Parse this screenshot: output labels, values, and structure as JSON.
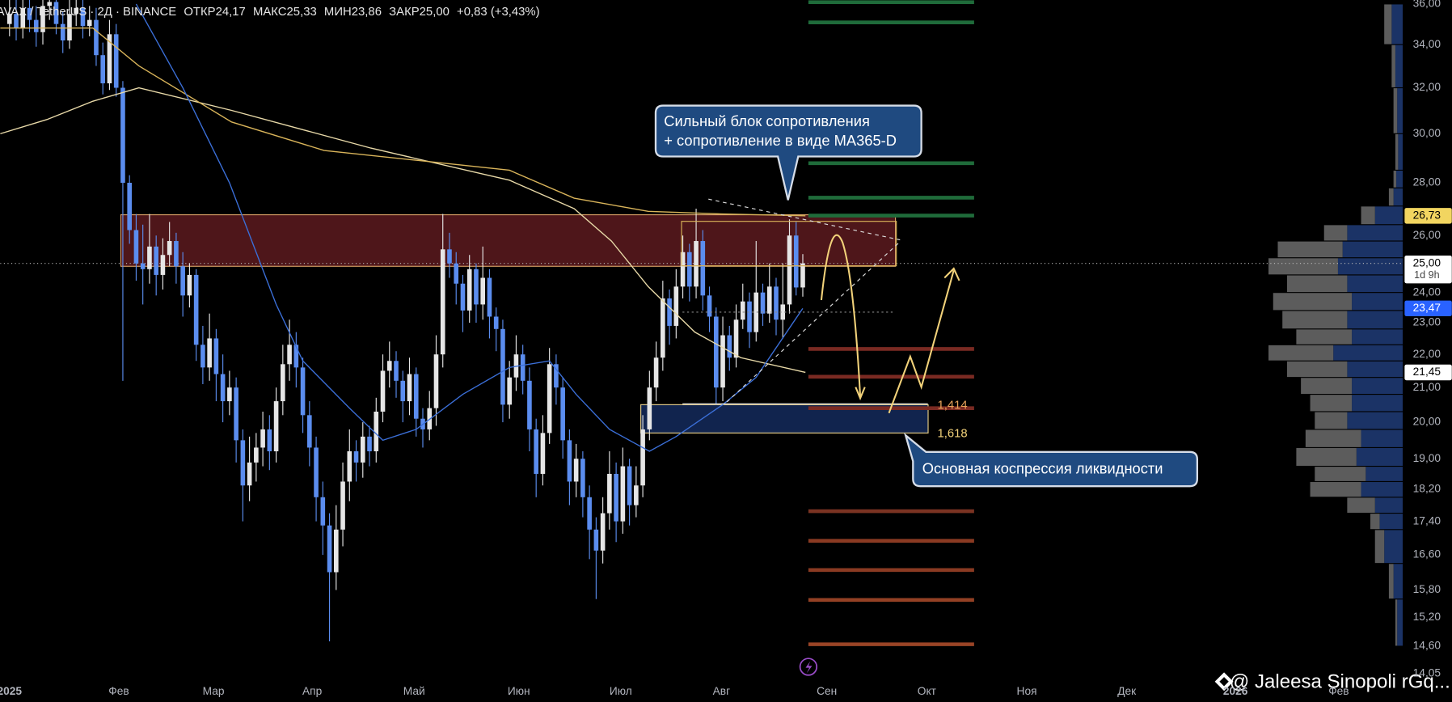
{
  "chart_data": {
    "type": "candlestick",
    "header": {
      "symbol": "AVAX / TetherUS · 2Д · BINANCE",
      "ohlc": [
        {
          "label": "ОТКР",
          "value": "24,17"
        },
        {
          "label": "МАКС",
          "value": "25,33"
        },
        {
          "label": "МИН",
          "value": "23,86"
        },
        {
          "label": "ЗАКР",
          "value": "25,00"
        }
      ],
      "change": "+0,83 (+3,43%)"
    },
    "log_scale": true,
    "grid": false,
    "up_color": "#e6e6e6",
    "down_color": "#5b8def",
    "xlim": [
      -1.4,
      209
    ],
    "ylim": [
      14,
      36.2
    ],
    "xticks": [
      {
        "value": 0,
        "label": "2025"
      },
      {
        "value": 16.4,
        "label": "Фев"
      },
      {
        "value": 30.6,
        "label": "Мар"
      },
      {
        "value": 45.4,
        "label": "Апр"
      },
      {
        "value": 60.7,
        "label": "Май"
      },
      {
        "value": 76.4,
        "label": "Июн"
      },
      {
        "value": 91.7,
        "label": "Июл"
      },
      {
        "value": 106.8,
        "label": "Авг"
      },
      {
        "value": 122.6,
        "label": "Сен"
      },
      {
        "value": 137.6,
        "label": "Окт"
      },
      {
        "value": 152.6,
        "label": "Ноя"
      },
      {
        "value": 167.6,
        "label": "Дек"
      },
      {
        "value": 183.9,
        "label": "2026"
      },
      {
        "value": 199.4,
        "label": "Фев"
      }
    ],
    "yticks": [
      {
        "value": 36,
        "label": "36,00"
      },
      {
        "value": 34,
        "label": "34,00"
      },
      {
        "value": 32,
        "label": "32,00"
      },
      {
        "value": 30,
        "label": "30,00"
      },
      {
        "value": 28,
        "label": "28,00"
      },
      {
        "value": 26,
        "label": "26,00"
      },
      {
        "value": 24,
        "label": "24,00"
      },
      {
        "value": 23,
        "label": "23,00"
      },
      {
        "value": 22,
        "label": "22,00"
      },
      {
        "value": 21,
        "label": "21,00"
      },
      {
        "value": 20,
        "label": "20,00"
      },
      {
        "value": 19,
        "label": "19,00"
      },
      {
        "value": 18.2,
        "label": "18,20"
      },
      {
        "value": 17.4,
        "label": "17,40"
      },
      {
        "value": 16.6,
        "label": "16,60"
      },
      {
        "value": 15.8,
        "label": "15,80"
      },
      {
        "value": 15.2,
        "label": "15,20"
      },
      {
        "value": 14.6,
        "label": "14,60"
      },
      {
        "value": 14.05,
        "label": "14,05"
      }
    ],
    "x": [
      0,
      1,
      2,
      3,
      4,
      5,
      6,
      7,
      8,
      9,
      10,
      11,
      12,
      13,
      14,
      15,
      16,
      17,
      18,
      19,
      20,
      21,
      22,
      23,
      24,
      25,
      26,
      27,
      28,
      29,
      30,
      31,
      32,
      33,
      34,
      35,
      36,
      37,
      38,
      39,
      40,
      41,
      42,
      43,
      44,
      45,
      46,
      47,
      48,
      49,
      50,
      51,
      52,
      53,
      54,
      55,
      56,
      57,
      58,
      59,
      60,
      61,
      62,
      63,
      64,
      65,
      66,
      67,
      68,
      69,
      70,
      71,
      72,
      73,
      74,
      75,
      76,
      77,
      78,
      79,
      80,
      81,
      82,
      83,
      84,
      85,
      86,
      87,
      88,
      89,
      90,
      91,
      92,
      93,
      94,
      95,
      96,
      97,
      98,
      99,
      100,
      101,
      102,
      103,
      104,
      105,
      106,
      107,
      108,
      109,
      110,
      111,
      112,
      113,
      114,
      115,
      116,
      117,
      118,
      119
    ],
    "open": [
      35.0,
      35.5,
      34.8,
      35.8,
      35.2,
      34.6,
      35.9,
      36.1,
      35.0,
      34.2,
      35.5,
      35.8,
      34.9,
      35.2,
      33.5,
      32.2,
      34.5,
      32.0,
      28.0,
      26.2,
      25.0,
      24.8,
      25.6,
      24.6,
      25.3,
      25.8,
      24.9,
      23.9,
      24.6,
      22.3,
      21.6,
      22.5,
      21.4,
      20.6,
      21.0,
      19.5,
      18.3,
      18.9,
      19.3,
      19.8,
      19.2,
      20.6,
      21.7,
      22.3,
      21.6,
      20.2,
      19.3,
      18.0,
      17.3,
      16.2,
      17.2,
      18.4,
      19.2,
      18.9,
      19.6,
      19.2,
      20.3,
      21.5,
      21.8,
      21.2,
      20.6,
      21.4,
      20.1,
      19.8,
      20.4,
      22.0,
      25.5,
      25.0,
      24.3,
      23.4,
      24.8,
      23.6,
      24.5,
      23.2,
      22.8,
      20.5,
      21.3,
      22.0,
      21.2,
      19.8,
      18.6,
      19.7,
      21.7,
      21.0,
      19.5,
      18.4,
      19.0,
      18.0,
      17.2,
      16.7,
      17.6,
      18.6,
      17.4,
      18.8,
      17.8,
      18.3,
      19.8,
      21.0,
      21.9,
      23.8,
      22.9,
      24.2,
      25.4,
      24.2,
      25.8,
      23.9,
      23.2,
      21.0,
      22.6,
      21.9,
      23.1,
      23.7,
      22.7,
      24.0,
      23.3,
      24.2,
      23.1,
      23.6,
      26.0,
      24.17
    ],
    "high": [
      36.4,
      36.3,
      36.8,
      36.5,
      35.9,
      36.6,
      37.0,
      36.8,
      35.6,
      36.2,
      36.4,
      36.3,
      35.9,
      35.8,
      34.1,
      35.2,
      35.0,
      32.3,
      28.3,
      26.8,
      26.4,
      26.8,
      26.0,
      25.9,
      26.5,
      26.1,
      25.4,
      25.0,
      24.8,
      22.9,
      23.3,
      22.8,
      22.0,
      21.5,
      21.3,
      19.8,
      19.6,
      19.7,
      20.3,
      20.2,
      21.0,
      22.3,
      23.1,
      22.7,
      21.9,
      20.6,
      19.6,
      18.4,
      17.6,
      17.8,
      18.9,
      19.8,
      19.5,
      20.0,
      19.9,
      20.7,
      22.0,
      22.4,
      22.1,
      21.5,
      21.9,
      21.6,
      20.4,
      20.9,
      22.6,
      26.8,
      26.1,
      25.4,
      24.6,
      25.3,
      25.0,
      25.6,
      24.8,
      23.5,
      23.1,
      21.8,
      22.6,
      22.3,
      21.6,
      20.1,
      20.2,
      22.2,
      22.0,
      21.3,
      19.8,
      19.4,
      19.2,
      18.3,
      17.5,
      18.0,
      19.2,
      18.9,
      19.3,
      19.0,
      18.8,
      20.2,
      21.5,
      22.4,
      24.4,
      24.1,
      24.8,
      26.0,
      25.7,
      27.0,
      26.2,
      24.2,
      23.5,
      23.2,
      22.9,
      23.6,
      24.3,
      24.0,
      25.8,
      24.3,
      25.0,
      24.5,
      25.0,
      26.6,
      26.5,
      25.33
    ],
    "low": [
      34.4,
      34.2,
      34.3,
      34.6,
      33.9,
      34.0,
      35.2,
      34.5,
      33.6,
      33.8,
      34.9,
      34.3,
      34.4,
      33.0,
      31.7,
      31.9,
      31.6,
      21.2,
      25.7,
      24.4,
      23.6,
      24.3,
      23.9,
      24.1,
      24.9,
      24.3,
      23.2,
      23.5,
      21.8,
      21.1,
      21.2,
      20.6,
      20.0,
      20.2,
      18.9,
      17.4,
      17.9,
      18.4,
      18.8,
      18.7,
      18.9,
      20.2,
      21.2,
      21.0,
      19.7,
      18.8,
      17.4,
      16.6,
      14.7,
      15.8,
      16.8,
      17.9,
      18.4,
      18.5,
      18.8,
      18.9,
      20.0,
      21.0,
      20.7,
      20.0,
      20.2,
      19.6,
      19.3,
      19.5,
      19.9,
      21.6,
      24.5,
      23.6,
      22.7,
      23.0,
      23.0,
      23.1,
      22.5,
      22.1,
      20.0,
      20.1,
      20.9,
      20.8,
      19.2,
      18.0,
      18.3,
      19.4,
      20.5,
      19.0,
      17.8,
      18.0,
      17.5,
      16.5,
      15.6,
      16.4,
      17.2,
      16.9,
      17.1,
      17.3,
      17.5,
      18.0,
      19.5,
      20.6,
      21.5,
      22.3,
      22.5,
      23.8,
      23.7,
      23.8,
      23.4,
      22.7,
      20.5,
      20.6,
      21.5,
      21.6,
      22.8,
      22.2,
      22.4,
      22.9,
      23.0,
      22.6,
      22.5,
      23.3,
      23.9,
      23.86
    ],
    "close": [
      35.5,
      34.8,
      35.8,
      35.2,
      34.6,
      35.9,
      36.1,
      35.0,
      34.2,
      35.5,
      35.8,
      34.9,
      35.2,
      33.5,
      32.2,
      34.5,
      32.0,
      28.0,
      26.2,
      25.0,
      24.8,
      25.6,
      24.6,
      25.3,
      25.8,
      24.9,
      23.9,
      24.6,
      22.3,
      21.6,
      22.5,
      21.4,
      20.6,
      21.0,
      19.5,
      18.3,
      18.9,
      19.3,
      19.8,
      19.2,
      20.6,
      21.7,
      22.3,
      21.6,
      20.2,
      19.3,
      18.0,
      17.3,
      16.2,
      17.2,
      18.4,
      19.2,
      18.9,
      19.6,
      19.2,
      20.3,
      21.5,
      21.8,
      21.2,
      20.6,
      21.4,
      20.1,
      19.8,
      20.4,
      22.0,
      25.5,
      25.0,
      24.3,
      23.4,
      24.8,
      23.6,
      24.5,
      23.2,
      22.8,
      20.5,
      21.3,
      22.0,
      21.2,
      19.8,
      18.6,
      19.7,
      21.7,
      21.0,
      19.5,
      18.4,
      19.0,
      18.0,
      17.2,
      16.7,
      17.6,
      18.6,
      17.4,
      18.8,
      17.8,
      18.3,
      19.8,
      21.0,
      21.9,
      23.8,
      22.9,
      24.2,
      25.4,
      24.2,
      25.8,
      23.9,
      23.2,
      21.0,
      22.6,
      21.9,
      23.1,
      23.7,
      22.7,
      24.0,
      23.3,
      24.2,
      23.1,
      23.6,
      26.0,
      24.17,
      25.0
    ],
    "lines": [
      {
        "color": "#e8d9a8",
        "x": [
          -1.4,
          5.6,
          12.5,
          19.4,
          33.3,
          54.2,
          75,
          84.7,
          90.3,
          95.8,
          102.8,
          109.7,
          119.4
        ],
        "values": [
          30.0,
          30.6,
          31.4,
          32.0,
          31.0,
          29.4,
          28.1,
          27.0,
          25.8,
          24.2,
          22.7,
          21.9,
          21.45
        ]
      },
      {
        "color": "#d9b45a",
        "x": [
          -1.4,
          12.5,
          19.4,
          33.3,
          47.2,
          61.1,
          75,
          84.7,
          95.8,
          106.9,
          119.4
        ],
        "values": [
          34.8,
          34.8,
          33.0,
          30.5,
          29.3,
          28.9,
          28.5,
          27.4,
          26.9,
          26.8,
          26.73
        ]
      },
      {
        "color": "#3b6fd8",
        "x": [
          19,
          26,
          33,
          40,
          44,
          51,
          56,
          61,
          68,
          75,
          81,
          85,
          90,
          96,
          100,
          107,
          112,
          119
        ],
        "values": [
          36.0,
          32.0,
          28.0,
          23.6,
          21.8,
          20.4,
          19.5,
          19.8,
          20.8,
          21.6,
          21.8,
          20.8,
          19.8,
          19.2,
          19.6,
          20.5,
          21.3,
          23.47
        ]
      }
    ],
    "zones": [
      {
        "x": [
          16.7,
          132.9
        ],
        "y": [
          24.9,
          26.77
        ],
        "color": "#5c1a1f",
        "border": "#d9a066"
      },
      {
        "x": [
          94.7,
          137.8
        ],
        "y": [
          19.7,
          20.5
        ],
        "color": "#142a5c",
        "border": "#e8d08a"
      }
    ],
    "fib_labels": [
      "1,414",
      "1,618"
    ],
    "levels": [
      {
        "value": 36.09,
        "color": "#1f6b3a"
      },
      {
        "value": 35.08,
        "color": "#1f6b3a"
      },
      {
        "value": 28.78,
        "color": "#1f6b3a"
      },
      {
        "value": 27.42,
        "color": "#1f6b3a"
      },
      {
        "value": 26.74,
        "color": "#1f6b3a"
      },
      {
        "value": 22.17,
        "color": "#7a2a22"
      },
      {
        "value": 21.32,
        "color": "#7a2a22"
      },
      {
        "value": 20.4,
        "color": "#7a2a22"
      },
      {
        "value": 17.65,
        "color": "#7a3322"
      },
      {
        "value": 16.93,
        "color": "#8a3a22"
      },
      {
        "value": 16.25,
        "color": "#8a3a22"
      },
      {
        "value": 15.58,
        "color": "#934024"
      },
      {
        "value": 14.64,
        "color": "#9a4426"
      }
    ],
    "volume_profile": {
      "bins": [
        36,
        34,
        32,
        30,
        28.5,
        27.8,
        27.1,
        26.4,
        25.8,
        25.2,
        24.6,
        24.0,
        23.4,
        22.8,
        22.3,
        21.8,
        21.3,
        20.8,
        20.3,
        19.8,
        19.3,
        18.8,
        18.4,
        18.0,
        17.6,
        17.2,
        16.4,
        15.6,
        14.6
      ],
      "series": [
        {
          "color": "#1b3366",
          "values": [
            12,
            8,
            6,
            5,
            7,
            10,
            30,
            60,
            65,
            70,
            60,
            55,
            60,
            55,
            75,
            60,
            55,
            55,
            60,
            45,
            50,
            40,
            45,
            30,
            25,
            20,
            10,
            6
          ]
        },
        {
          "color": "#5c5c5c",
          "values": [
            8,
            4,
            4,
            3,
            3,
            5,
            15,
            25,
            70,
            75,
            65,
            85,
            70,
            60,
            70,
            65,
            55,
            45,
            35,
            60,
            65,
            55,
            55,
            30,
            10,
            10,
            5,
            2
          ]
        }
      ]
    },
    "price_labels": [
      {
        "value": 26.73,
        "label": "26,73",
        "color": "#f2d560",
        "text_color": "#000000"
      },
      {
        "value": 25.0,
        "label": "25,00",
        "color": "#ffffff",
        "text_color": "#000000",
        "sub": "1d 9h"
      },
      {
        "value": 23.47,
        "label": "23,47",
        "color": "#2962ff",
        "text_color": "#ffffff"
      },
      {
        "value": 21.45,
        "label": "21,45",
        "color": "#ffffff",
        "text_color": "#000000"
      }
    ],
    "annotations": [
      "Сильный блок сопротивления",
      "+ сопротивление в виде MA365-D",
      "Основная коспрессия ликвидности"
    ],
    "watermark": "@ Jaleesa Sinopoli rGq..."
  }
}
